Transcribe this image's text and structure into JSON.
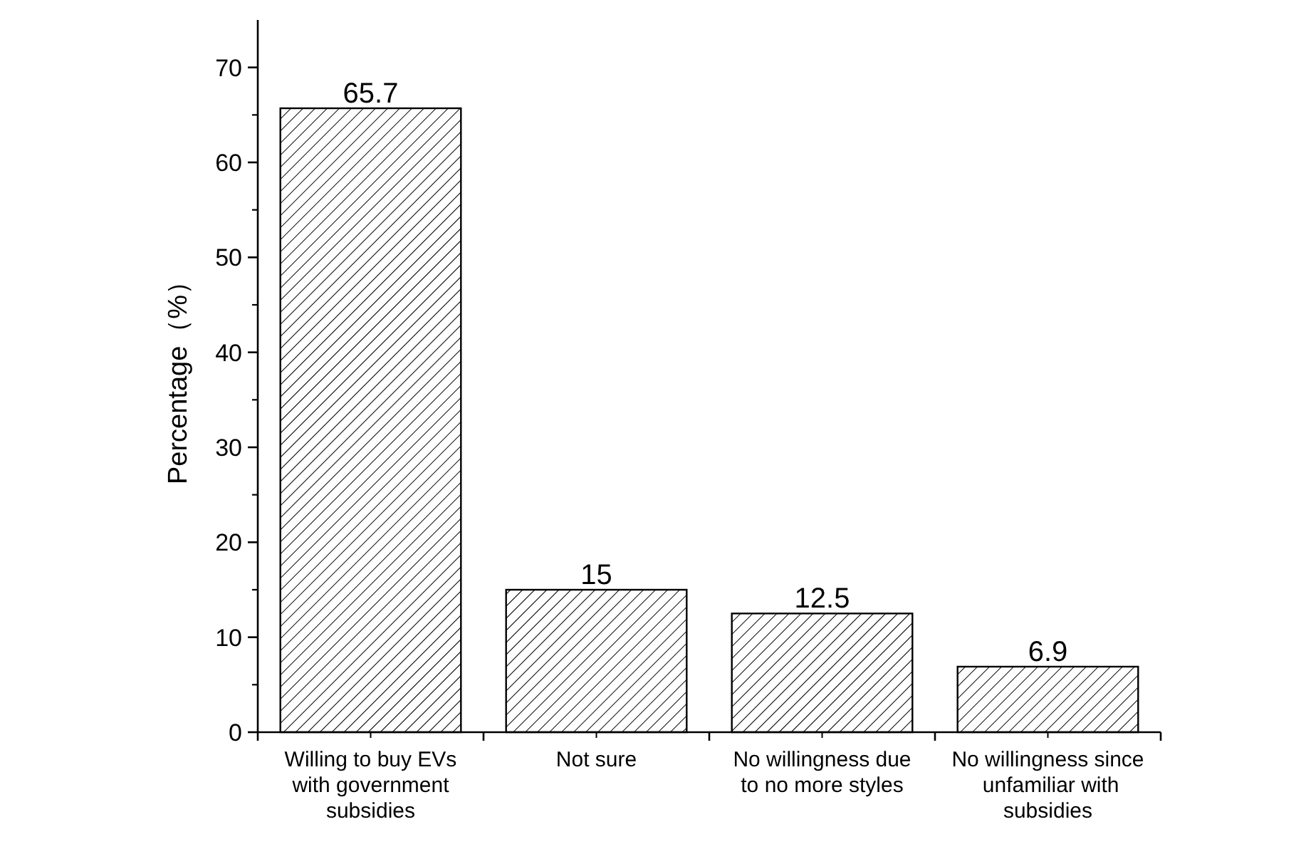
{
  "chart_data": {
    "type": "bar",
    "ylabel": "Percentage（%）",
    "categories": [
      "Willing to buy EVs with government subsidies",
      "Not sure",
      "No willingness due to no more styles",
      "No willingness since  unfamiliar with subsidies"
    ],
    "values": [
      65.7,
      15,
      12.5,
      6.9
    ],
    "color": "#000000",
    "ylim": [
      0,
      75
    ],
    "yticks": [
      0,
      10,
      20,
      30,
      40,
      50,
      60,
      70
    ],
    "data_labels": true
  }
}
